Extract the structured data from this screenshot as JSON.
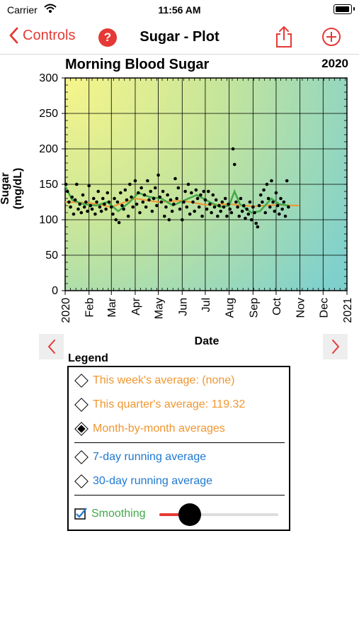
{
  "status": {
    "carrier": "Carrier",
    "time": "11:56 AM"
  },
  "nav": {
    "back_label": "Controls",
    "help_label": "?",
    "title": "Sugar - Plot"
  },
  "chart": {
    "title": "Morning Blood Sugar",
    "year": "2020",
    "ylabel": "Sugar (mg/dL)",
    "xlabel": "Date"
  },
  "legend": {
    "title": "Legend",
    "week_avg": "This week's average: (none)",
    "quarter_avg": "This quarter's average: 119.32",
    "monthly": "Month-by-month averages",
    "running7": "7-day running average",
    "running30": "30-day running average",
    "smoothing": "Smoothing",
    "smoothing_checked": true,
    "smoothing_level": 0.25
  },
  "colors": {
    "accent": "#e53935",
    "orange": "#f0962f",
    "blue": "#1f78d1",
    "green": "#43a84a"
  },
  "icons": {
    "back": "chevron-left-icon",
    "help": "question-icon",
    "share": "share-icon",
    "add": "plus-circle-icon",
    "prev": "chevron-left-icon",
    "next": "chevron-right-icon"
  },
  "chart_data": {
    "type": "scatter",
    "title": "Morning Blood Sugar",
    "xlabel": "Date",
    "ylabel": "Sugar (mg/dL)",
    "ylim": [
      0,
      300
    ],
    "yticks": [
      0,
      50,
      100,
      150,
      200,
      250,
      300
    ],
    "xlim": [
      "2020-01-01",
      "2021-01-01"
    ],
    "xticks": [
      "2020",
      "Feb",
      "Mar",
      "Apr",
      "May",
      "Jun",
      "Jul",
      "Aug",
      "Sep",
      "Oct",
      "Nov",
      "Dec",
      "2021"
    ],
    "grid": true,
    "series": [
      {
        "kind": "points",
        "points": [
          [
            "2020-01-02",
            150
          ],
          [
            "2020-01-04",
            140
          ],
          [
            "2020-01-06",
            125
          ],
          [
            "2020-01-08",
            118
          ],
          [
            "2020-01-10",
            132
          ],
          [
            "2020-01-12",
            108
          ],
          [
            "2020-01-14",
            128
          ],
          [
            "2020-01-16",
            150
          ],
          [
            "2020-01-18",
            115
          ],
          [
            "2020-01-20",
            122
          ],
          [
            "2020-01-22",
            110
          ],
          [
            "2020-01-24",
            135
          ],
          [
            "2020-01-26",
            118
          ],
          [
            "2020-01-28",
            125
          ],
          [
            "2020-01-30",
            112
          ],
          [
            "2020-02-01",
            148
          ],
          [
            "2020-02-03",
            120
          ],
          [
            "2020-02-05",
            115
          ],
          [
            "2020-02-07",
            130
          ],
          [
            "2020-02-09",
            108
          ],
          [
            "2020-02-11",
            125
          ],
          [
            "2020-02-13",
            140
          ],
          [
            "2020-02-15",
            118
          ],
          [
            "2020-02-17",
            112
          ],
          [
            "2020-02-19",
            130
          ],
          [
            "2020-02-21",
            122
          ],
          [
            "2020-02-23",
            115
          ],
          [
            "2020-02-25",
            138
          ],
          [
            "2020-02-27",
            125
          ],
          [
            "2020-03-01",
            118
          ],
          [
            "2020-03-03",
            108
          ],
          [
            "2020-03-05",
            130
          ],
          [
            "2020-03-07",
            100
          ],
          [
            "2020-03-09",
            125
          ],
          [
            "2020-03-11",
            96
          ],
          [
            "2020-03-13",
            138
          ],
          [
            "2020-03-15",
            120
          ],
          [
            "2020-03-17",
            115
          ],
          [
            "2020-03-19",
            142
          ],
          [
            "2020-03-21",
            128
          ],
          [
            "2020-03-23",
            105
          ],
          [
            "2020-03-25",
            150
          ],
          [
            "2020-03-27",
            132
          ],
          [
            "2020-03-29",
            118
          ],
          [
            "2020-04-01",
            155
          ],
          [
            "2020-04-03",
            122
          ],
          [
            "2020-04-05",
            138
          ],
          [
            "2020-04-07",
            110
          ],
          [
            "2020-04-09",
            145
          ],
          [
            "2020-04-11",
            125
          ],
          [
            "2020-04-13",
            135
          ],
          [
            "2020-04-15",
            118
          ],
          [
            "2020-04-17",
            155
          ],
          [
            "2020-04-19",
            128
          ],
          [
            "2020-04-21",
            140
          ],
          [
            "2020-04-23",
            112
          ],
          [
            "2020-04-25",
            130
          ],
          [
            "2020-04-27",
            145
          ],
          [
            "2020-04-29",
            120
          ],
          [
            "2020-05-01",
            163
          ],
          [
            "2020-05-03",
            132
          ],
          [
            "2020-05-05",
            125
          ],
          [
            "2020-05-07",
            140
          ],
          [
            "2020-05-09",
            105
          ],
          [
            "2020-05-11",
            118
          ],
          [
            "2020-05-13",
            135
          ],
          [
            "2020-05-15",
            100
          ],
          [
            "2020-05-17",
            128
          ],
          [
            "2020-05-19",
            112
          ],
          [
            "2020-05-21",
            122
          ],
          [
            "2020-05-23",
            158
          ],
          [
            "2020-05-25",
            130
          ],
          [
            "2020-05-27",
            145
          ],
          [
            "2020-05-29",
            115
          ],
          [
            "2020-06-01",
            100
          ],
          [
            "2020-06-03",
            125
          ],
          [
            "2020-06-05",
            140
          ],
          [
            "2020-06-07",
            118
          ],
          [
            "2020-06-09",
            150
          ],
          [
            "2020-06-11",
            108
          ],
          [
            "2020-06-13",
            138
          ],
          [
            "2020-06-15",
            125
          ],
          [
            "2020-06-17",
            112
          ],
          [
            "2020-06-19",
            142
          ],
          [
            "2020-06-21",
            130
          ],
          [
            "2020-06-23",
            118
          ],
          [
            "2020-06-25",
            135
          ],
          [
            "2020-06-27",
            105
          ],
          [
            "2020-06-29",
            140
          ],
          [
            "2020-07-01",
            128
          ],
          [
            "2020-07-03",
            115
          ],
          [
            "2020-07-05",
            140
          ],
          [
            "2020-07-07",
            122
          ],
          [
            "2020-07-09",
            110
          ],
          [
            "2020-07-11",
            135
          ],
          [
            "2020-07-13",
            118
          ],
          [
            "2020-07-15",
            128
          ],
          [
            "2020-07-17",
            105
          ],
          [
            "2020-07-19",
            120
          ],
          [
            "2020-07-21",
            112
          ],
          [
            "2020-07-23",
            125
          ],
          [
            "2020-07-25",
            118
          ],
          [
            "2020-07-27",
            130
          ],
          [
            "2020-07-29",
            105
          ],
          [
            "2020-07-31",
            122
          ],
          [
            "2020-08-02",
            115
          ],
          [
            "2020-08-04",
            110
          ],
          [
            "2020-08-06",
            200
          ],
          [
            "2020-08-08",
            178
          ],
          [
            "2020-08-10",
            125
          ],
          [
            "2020-08-12",
            118
          ],
          [
            "2020-08-14",
            105
          ],
          [
            "2020-08-16",
            130
          ],
          [
            "2020-08-18",
            112
          ],
          [
            "2020-08-20",
            120
          ],
          [
            "2020-08-22",
            102
          ],
          [
            "2020-08-24",
            115
          ],
          [
            "2020-08-26",
            108
          ],
          [
            "2020-08-28",
            125
          ],
          [
            "2020-08-30",
            100
          ],
          [
            "2020-09-01",
            118
          ],
          [
            "2020-09-03",
            110
          ],
          [
            "2020-09-05",
            95
          ],
          [
            "2020-09-07",
            90
          ],
          [
            "2020-09-09",
            120
          ],
          [
            "2020-09-11",
            135
          ],
          [
            "2020-09-13",
            125
          ],
          [
            "2020-09-15",
            142
          ],
          [
            "2020-09-17",
            110
          ],
          [
            "2020-09-19",
            150
          ],
          [
            "2020-09-21",
            130
          ],
          [
            "2020-09-23",
            118
          ],
          [
            "2020-09-25",
            155
          ],
          [
            "2020-09-27",
            125
          ],
          [
            "2020-09-29",
            112
          ],
          [
            "2020-10-01",
            138
          ],
          [
            "2020-10-03",
            120
          ],
          [
            "2020-10-05",
            108
          ],
          [
            "2020-10-07",
            130
          ],
          [
            "2020-10-09",
            115
          ],
          [
            "2020-10-11",
            125
          ],
          [
            "2020-10-13",
            105
          ],
          [
            "2020-10-15",
            155
          ],
          [
            "2020-10-17",
            118
          ]
        ]
      },
      {
        "kind": "smoothed-line",
        "color": "#43a84a",
        "points": [
          [
            "2020-01-01",
            148
          ],
          [
            "2020-01-10",
            128
          ],
          [
            "2020-01-25",
            122
          ],
          [
            "2020-02-10",
            120
          ],
          [
            "2020-02-25",
            125
          ],
          [
            "2020-03-10",
            112
          ],
          [
            "2020-03-25",
            125
          ],
          [
            "2020-04-05",
            138
          ],
          [
            "2020-04-20",
            132
          ],
          [
            "2020-05-05",
            130
          ],
          [
            "2020-05-20",
            120
          ],
          [
            "2020-06-05",
            128
          ],
          [
            "2020-06-20",
            135
          ],
          [
            "2020-07-05",
            126
          ],
          [
            "2020-07-20",
            118
          ],
          [
            "2020-08-01",
            120
          ],
          [
            "2020-08-08",
            140
          ],
          [
            "2020-08-15",
            122
          ],
          [
            "2020-08-30",
            110
          ],
          [
            "2020-09-10",
            112
          ],
          [
            "2020-09-25",
            130
          ],
          [
            "2020-10-05",
            122
          ],
          [
            "2020-10-17",
            120
          ]
        ]
      },
      {
        "kind": "monthly-average",
        "color": "#f0962f",
        "points": [
          [
            "2020-01-01",
            125
          ],
          [
            "2020-02-01",
            124
          ],
          [
            "2020-03-01",
            118
          ],
          [
            "2020-04-01",
            130
          ],
          [
            "2020-05-01",
            125
          ],
          [
            "2020-06-01",
            127
          ],
          [
            "2020-07-01",
            121
          ],
          [
            "2020-08-01",
            122
          ],
          [
            "2020-09-01",
            119
          ],
          [
            "2020-10-01",
            121
          ],
          [
            "2020-10-31",
            120
          ]
        ]
      }
    ]
  }
}
